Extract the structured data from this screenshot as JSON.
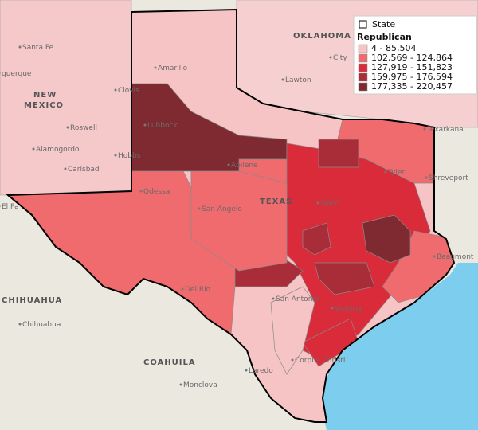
{
  "legend": {
    "state_label": "State",
    "title": "Republican",
    "ranges": [
      {
        "label": "4 -  85,504",
        "color": "#f7c4c5"
      },
      {
        "label": "102,569 -  124,864",
        "color": "#ef6b6e"
      },
      {
        "label": "127,919 -  151,823",
        "color": "#d92b3a"
      },
      {
        "label": "159,975 -  176,594",
        "color": "#a82d38"
      },
      {
        "label": "177,335 -  220,457",
        "color": "#7f2a31"
      }
    ]
  },
  "places": [
    {
      "label": "Santa Fe"
    },
    {
      "label": "querque"
    },
    {
      "label": "Amarillo"
    },
    {
      "label": "Roswell"
    },
    {
      "label": "Alamogordo"
    },
    {
      "label": "Carlsbad"
    },
    {
      "label": "Hobbs"
    },
    {
      "label": "Lubbock"
    },
    {
      "label": "Abilene"
    },
    {
      "label": "Lawton"
    },
    {
      "label": "City"
    },
    {
      "label": "Odessa"
    },
    {
      "label": "San Angelo"
    },
    {
      "label": "Waco"
    },
    {
      "label": "El Pa"
    },
    {
      "label": "Chihuahua"
    },
    {
      "label": "Monclova"
    },
    {
      "label": "Laredo"
    },
    {
      "label": "Corpus Christi"
    },
    {
      "label": "Victoria"
    },
    {
      "label": "Beaumont"
    },
    {
      "label": "Shreveport"
    },
    {
      "label": "Texarkana"
    },
    {
      "label": "Del Rio"
    },
    {
      "label": "San Antonio"
    },
    {
      "label": "Clovis"
    },
    {
      "label": "Tyler"
    }
  ],
  "regions": [
    {
      "label": "NEW"
    },
    {
      "label": "MEXICO"
    },
    {
      "label": "OKLAHOMA"
    },
    {
      "label": "TEXAS"
    },
    {
      "label": "CHIHUAHUA"
    },
    {
      "label": "COAHUILA"
    }
  ]
}
